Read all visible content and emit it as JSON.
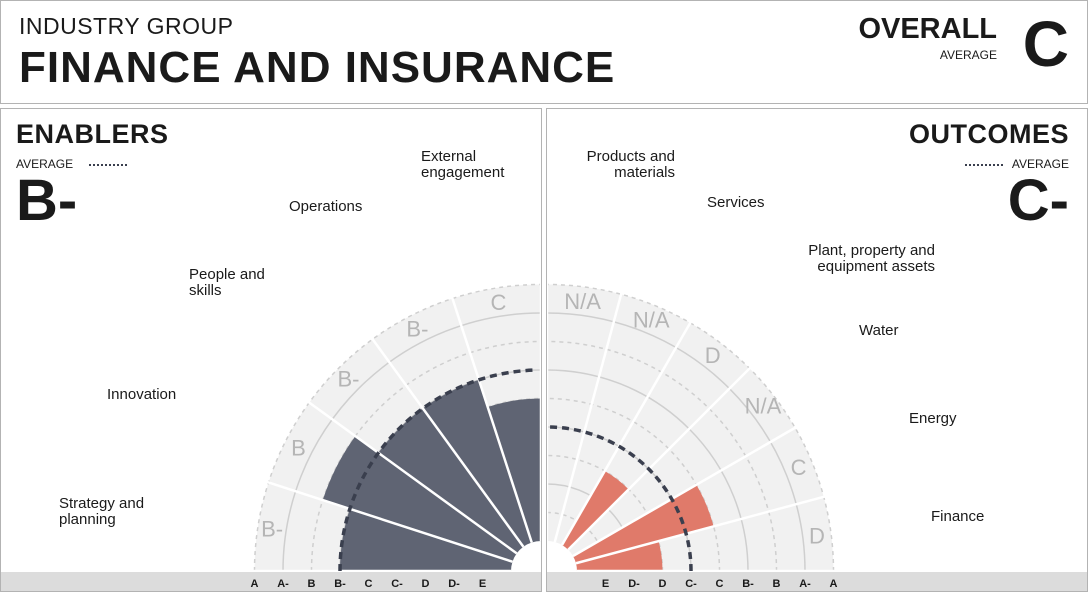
{
  "header": {
    "eyebrow": "INDUSTRY GROUP",
    "title": "FINANCE AND INSURANCE",
    "overall_label": "OVERALL",
    "overall_sub": "AVERAGE",
    "overall_grade": "C"
  },
  "colors": {
    "enablers_bar": "#5f6473",
    "outcomes_bar": "#e07a6a",
    "slice_bg": "#f1f1f1",
    "ring": "#cfcfcf",
    "average_dash": "#3a3f4e",
    "grade_text": "#b5b5b5",
    "axis_band": "#dcdcdc"
  },
  "chart_data": [
    {
      "type": "polar-bar",
      "title": "ENABLERS",
      "average_label": "AVERAGE",
      "average_grade": "B-",
      "scale": [
        "E",
        "D-",
        "D",
        "C-",
        "C",
        "B-",
        "B",
        "A-",
        "A"
      ],
      "axis_ticks": [
        "A",
        "A-",
        "B",
        "B-",
        "C",
        "C-",
        "D",
        "D-",
        "E"
      ],
      "average_score": 6,
      "categories": [
        {
          "name": "Strategy and planning",
          "line1": "Strategy and",
          "line2": "planning",
          "grade": "B-",
          "score": 6
        },
        {
          "name": "Innovation",
          "line1": "Innovation",
          "line2": "",
          "grade": "B",
          "score": 7
        },
        {
          "name": "People and skills",
          "line1": "People and",
          "line2": "skills",
          "grade": "B-",
          "score": 6
        },
        {
          "name": "Operations",
          "line1": "Operations",
          "line2": "",
          "grade": "B-",
          "score": 6
        },
        {
          "name": "External engagement",
          "line1": "External",
          "line2": "engagement",
          "grade": "C",
          "score": 5
        }
      ]
    },
    {
      "type": "polar-bar",
      "title": "OUTCOMES",
      "average_label": "AVERAGE",
      "average_grade": "C-",
      "scale": [
        "E",
        "D-",
        "D",
        "C-",
        "C",
        "B-",
        "B",
        "A-",
        "A"
      ],
      "axis_ticks": [
        "E",
        "D-",
        "D",
        "C-",
        "C",
        "B-",
        "B",
        "A-",
        "A"
      ],
      "average_score": 4,
      "categories": [
        {
          "name": "Finance",
          "line1": "Finance",
          "line2": "",
          "grade": "D",
          "score": 3
        },
        {
          "name": "Energy",
          "line1": "Energy",
          "line2": "",
          "grade": "C",
          "score": 5
        },
        {
          "name": "Water",
          "line1": "Water",
          "line2": "",
          "grade": "N/A",
          "score": null
        },
        {
          "name": "Plant, property and equipment assets",
          "line1": "Plant, property and",
          "line2": "equipment assets",
          "grade": "D",
          "score": 3
        },
        {
          "name": "Services",
          "line1": "Services",
          "line2": "",
          "grade": "N/A",
          "score": null
        },
        {
          "name": "Products and materials",
          "line1": "Products and",
          "line2": "materials",
          "grade": "N/A",
          "score": null
        }
      ]
    }
  ]
}
